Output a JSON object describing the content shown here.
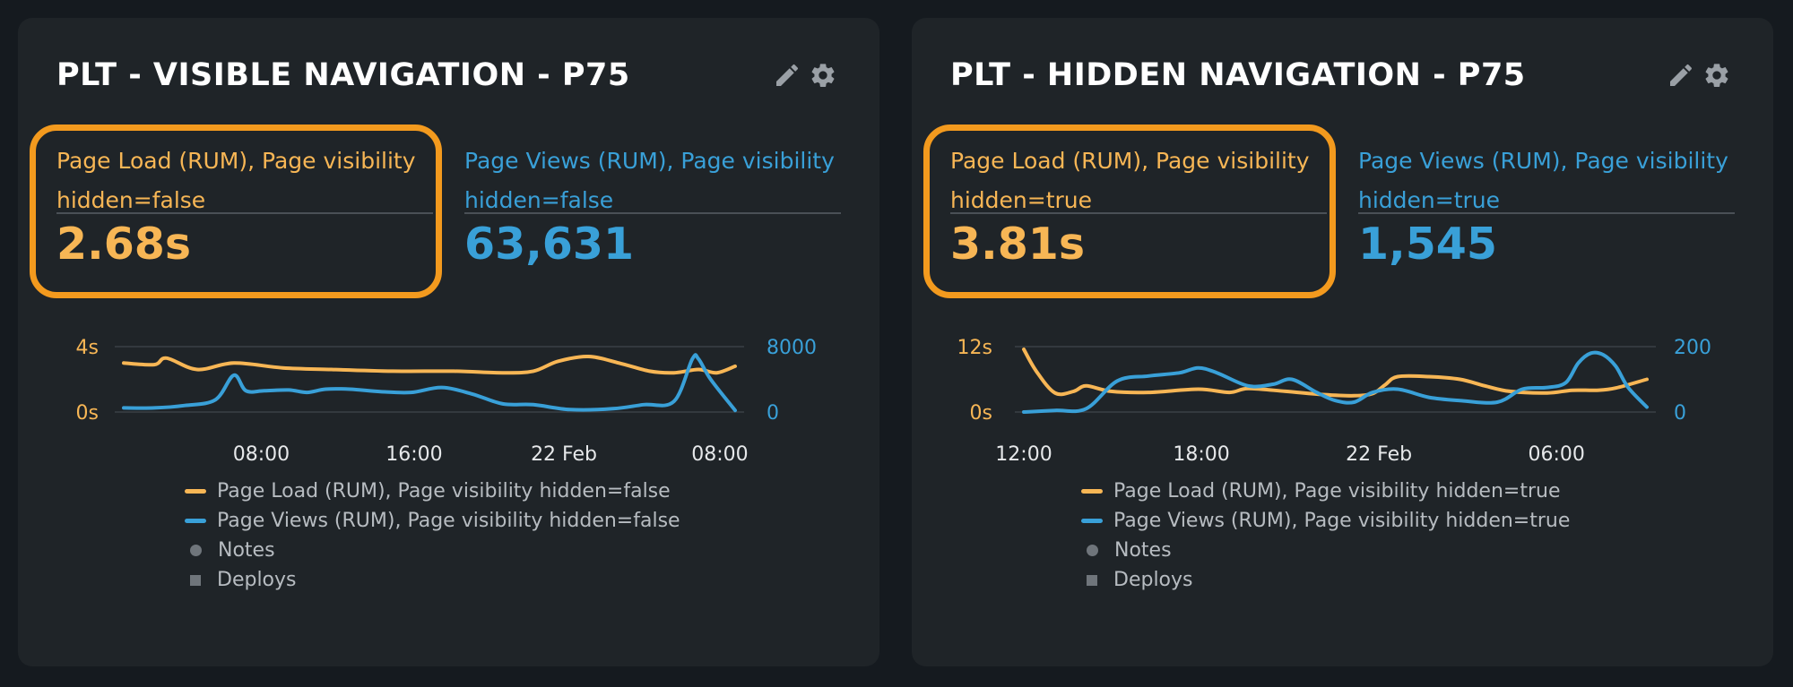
{
  "colors": {
    "page_load": "#f7b655",
    "page_views": "#39a0d8",
    "highlight": "#f39a1e"
  },
  "icons": [
    "pencil-icon",
    "gear-icon"
  ],
  "panels": [
    {
      "title": "PLT - VISIBLE NAVIGATION - P75",
      "metric_load_label": "Page Load (RUM), Page visibility hidden=false",
      "metric_load_value": "2.68s",
      "metric_views_label": "Page Views (RUM), Page visibility hidden=false",
      "metric_views_value": "63,631",
      "legend": [
        "Page Load (RUM), Page visibility hidden=false",
        "Page Views (RUM), Page visibility hidden=false",
        "Notes",
        "Deploys"
      ]
    },
    {
      "title": "PLT - HIDDEN NAVIGATION - P75",
      "metric_load_label": "Page Load (RUM), Page visibility hidden=true",
      "metric_load_value": "3.81s",
      "metric_views_label": "Page Views (RUM), Page visibility hidden=true",
      "metric_views_value": "1,545",
      "legend": [
        "Page Load (RUM), Page visibility hidden=true",
        "Page Views (RUM), Page visibility hidden=true",
        "Notes",
        "Deploys"
      ]
    }
  ],
  "chart_data": [
    {
      "type": "line",
      "x_ticks": [
        "08:00",
        "16:00",
        "22 Feb",
        "08:00"
      ],
      "y_left_ticks": [
        "4s",
        "0s"
      ],
      "y_right_ticks": [
        "8000",
        "0"
      ],
      "y_left_range": [
        0,
        4
      ],
      "y_right_range": [
        0,
        8000
      ],
      "x_range": [
        0,
        1
      ],
      "x_tick_positions": [
        0.225,
        0.475,
        0.72,
        0.975
      ],
      "series": [
        {
          "name": "Page Load (RUM), Page visibility hidden=false",
          "axis": "left",
          "x": [
            0,
            0.05,
            0.07,
            0.12,
            0.18,
            0.26,
            0.34,
            0.44,
            0.54,
            0.62,
            0.67,
            0.71,
            0.76,
            0.81,
            0.86,
            0.9,
            0.94,
            0.97,
            1
          ],
          "y": [
            3.0,
            2.9,
            3.3,
            2.6,
            3.0,
            2.7,
            2.6,
            2.5,
            2.5,
            2.4,
            2.5,
            3.1,
            3.4,
            3.0,
            2.5,
            2.4,
            2.6,
            2.4,
            2.8
          ]
        },
        {
          "name": "Page Views (RUM), Page visibility hidden=false",
          "axis": "right",
          "x": [
            0,
            0.05,
            0.1,
            0.15,
            0.18,
            0.2,
            0.23,
            0.27,
            0.3,
            0.33,
            0.37,
            0.42,
            0.47,
            0.52,
            0.57,
            0.62,
            0.67,
            0.73,
            0.8,
            0.85,
            0.9,
            0.93,
            0.94,
            0.96,
            1
          ],
          "y": [
            500,
            500,
            800,
            1500,
            4500,
            2600,
            2600,
            2700,
            2400,
            2800,
            2800,
            2500,
            2400,
            3000,
            2200,
            1000,
            900,
            300,
            400,
            900,
            1300,
            6500,
            6500,
            4000,
            200
          ]
        }
      ]
    },
    {
      "type": "line",
      "x_ticks": [
        "12:00",
        "18:00",
        "22 Feb",
        "06:00"
      ],
      "y_left_ticks": [
        "12s",
        "0s"
      ],
      "y_right_ticks": [
        "200",
        "0"
      ],
      "y_left_range": [
        0,
        12
      ],
      "y_right_range": [
        0,
        200
      ],
      "x_range": [
        0,
        1
      ],
      "x_tick_positions": [
        0.0,
        0.285,
        0.57,
        0.855
      ],
      "series": [
        {
          "name": "Page Load (RUM), Page visibility hidden=true",
          "axis": "left",
          "x": [
            0,
            0.02,
            0.05,
            0.08,
            0.1,
            0.14,
            0.2,
            0.28,
            0.33,
            0.36,
            0.42,
            0.48,
            0.53,
            0.56,
            0.58,
            0.6,
            0.65,
            0.7,
            0.74,
            0.78,
            0.84,
            0.88,
            0.92,
            0.95,
            1
          ],
          "y": [
            11.5,
            7.5,
            3.5,
            3.8,
            4.8,
            3.8,
            3.6,
            4.2,
            3.6,
            4.3,
            3.8,
            3.2,
            3.0,
            3.4,
            5.0,
            6.5,
            6.5,
            6.0,
            4.8,
            3.8,
            3.5,
            4.0,
            4.0,
            4.4,
            6.0
          ]
        },
        {
          "name": "Page Views (RUM), Page visibility hidden=true",
          "axis": "right",
          "x": [
            0,
            0.05,
            0.1,
            0.15,
            0.2,
            0.25,
            0.28,
            0.31,
            0.36,
            0.4,
            0.43,
            0.47,
            0.5,
            0.53,
            0.56,
            0.6,
            0.65,
            0.7,
            0.76,
            0.8,
            0.84,
            0.87,
            0.89,
            0.91,
            0.93,
            0.95,
            0.97,
            1
          ],
          "y": [
            0,
            5,
            10,
            95,
            110,
            120,
            135,
            120,
            80,
            85,
            100,
            60,
            35,
            30,
            60,
            70,
            45,
            35,
            30,
            70,
            75,
            90,
            150,
            180,
            175,
            140,
            75,
            15
          ]
        }
      ]
    }
  ]
}
